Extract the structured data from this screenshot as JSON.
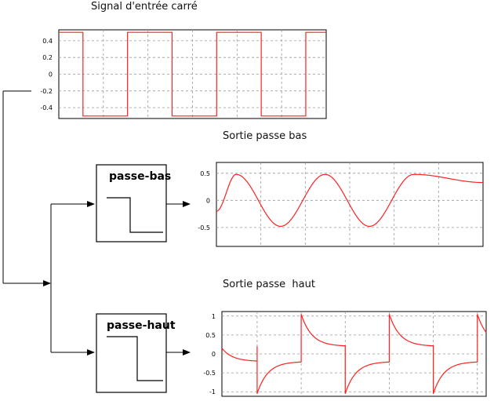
{
  "input_title": "Signal d'entrée carré",
  "lowpass_title": "Sortie passe bas",
  "highpass_title": "Sortie passe  haut",
  "lowpass_block_label": "passe-bas",
  "highpass_block_label": "passe-haut",
  "signal_color": "#ff2020",
  "grid_color": "#999999",
  "chart_data": [
    {
      "type": "line",
      "role": "input",
      "title": "Signal d'entrée carré",
      "y_ticks": [
        "0.4",
        "0.2",
        "0",
        "-0.2",
        "-0.4"
      ],
      "y_tick_values": [
        0.4,
        0.2,
        0,
        -0.2,
        -0.4
      ],
      "ylim": [
        -0.53,
        0.53
      ],
      "xlim": [
        0,
        3
      ],
      "vgrid": [
        0.5,
        1,
        1.5,
        2,
        2.5
      ],
      "grid": true,
      "wave": "square",
      "amplitude": 0.5,
      "period": 1,
      "edge_times": [
        0.271,
        0.771,
        1.271,
        1.771,
        2.271,
        2.771
      ]
    },
    {
      "type": "line",
      "role": "lowpass_output",
      "title": "Sortie passe bas",
      "y_ticks": [
        "0.5",
        "0",
        "-0.5"
      ],
      "y_tick_values": [
        0.5,
        0,
        -0.5
      ],
      "ylim": [
        -0.85,
        0.7
      ],
      "xlim": [
        0,
        3
      ],
      "vgrid": [
        0.5,
        1,
        1.5,
        2,
        2.5
      ],
      "grid": true,
      "wave": "lowpass",
      "amplitude": 0.48,
      "peak_times": [
        0.222,
        1.222,
        2.222
      ],
      "trough_times": [
        0.722,
        1.722
      ],
      "start_value": -0.2,
      "end_value": 0.33
    },
    {
      "type": "line",
      "role": "highpass_output",
      "title": "Sortie passe  haut",
      "y_ticks": [
        "1",
        "0.5",
        "0",
        "-0.5",
        "-1"
      ],
      "y_tick_values": [
        1,
        0.5,
        0,
        -0.5,
        -1
      ],
      "ylim": [
        -1.12,
        1.12
      ],
      "xlim": [
        0,
        3
      ],
      "vgrid": [
        0.4,
        0.9,
        1.4,
        1.9,
        2.4,
        2.9
      ],
      "grid": true,
      "wave": "highpass",
      "peak_value": 1.05,
      "settle_value": 0.2,
      "step_times": [
        0.4,
        0.9,
        1.4,
        1.9,
        2.4,
        2.9
      ]
    }
  ]
}
